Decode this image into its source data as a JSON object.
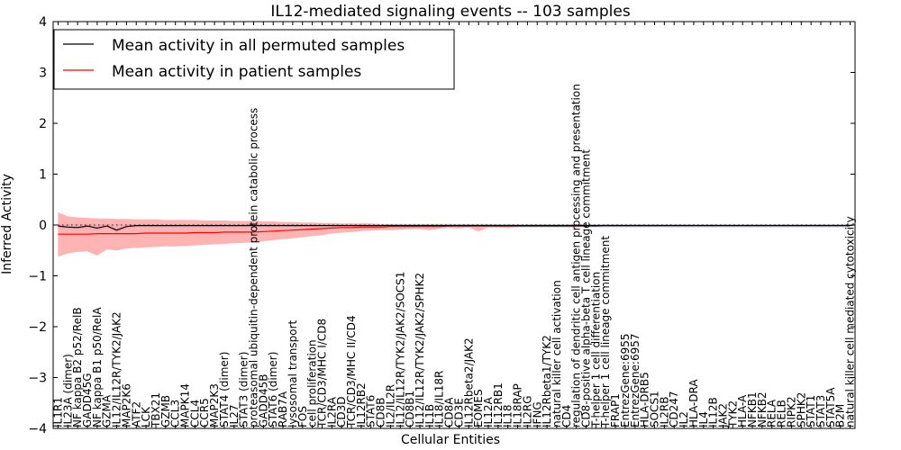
{
  "chart_data": {
    "type": "line",
    "title": "IL12-mediated signaling events -- 103 samples",
    "xlabel": "Cellular Entities",
    "ylabel": "Inferred Activity",
    "ylim": [
      -4,
      4
    ],
    "yticks": [
      -4,
      -3,
      -2,
      -1,
      0,
      1,
      2,
      3,
      4
    ],
    "ytick_labels": [
      "−4",
      "−3",
      "−2",
      "−1",
      "0",
      "1",
      "2",
      "3",
      "4"
    ],
    "grid": false,
    "legend_position": "top-left",
    "categories": [
      "IL1R1",
      "IL23A (dimer)",
      "NF kappa B2 p52/RelB",
      "GADD45G",
      "NF kappa B1 p50/RelA",
      "GZMA",
      "IL12/IL12R/TYK2/JAK2",
      "MAP2K6",
      "ATF2",
      "LCK",
      "TBX21",
      "GZMB",
      "CCL3",
      "MAPK14",
      "CCL4",
      "CCR5",
      "MAP2K3",
      "STAT4 (dimer)",
      "IL27",
      "STAT3 (dimer)",
      "proteasomal ubiquitin-dependent protein catabolic process",
      "GADD45B",
      "STAT6 (dimer)",
      "RAB7A",
      "lysosomal transport",
      "FOS",
      "cell proliferation",
      "TCR/CD3/MHC I/CD8",
      "IL2RA",
      "CD3D",
      "TCR/CD3/MHC II/CD4",
      "IL12RB2",
      "STAT6",
      "CD8B",
      "IL2/IL2R",
      "IL12/IL12R/TYK2/JAK2/SOCS1",
      "CD8B1",
      "IL12/IL12R/TYK2/JAK2/SPHK2",
      "IL1B",
      "IL18/IL18R",
      "CD8A",
      "CD3E",
      "IL12Rbeta2/JAK2",
      "EOMES",
      "IL12A",
      "IL12RB1",
      "IL18",
      "IL18RAP",
      "IL2RG",
      "IFNG",
      "IL12Rbeta1/TYK2",
      "natural killer cell activation",
      "CD4",
      "regulation of dendritic cell antigen processing and presentation",
      "CD8-positive alpha-beta T cell lineage commitment",
      "T-helper 1 cell differentiation",
      "T-helper 1 cell lineage commitment",
      "FRAP1",
      "EntrezGene:6955",
      "EntrezGene:6957",
      "HLA-DRB5",
      "SOCS1",
      "IL2RB",
      "CD247",
      "IL2",
      "HLA-DRA",
      "IL4",
      "IL12B",
      "JAK2",
      "TYK2",
      "HLA-A",
      "NFKB1",
      "NFKB2",
      "RELA",
      "RELB",
      "RIPK2",
      "SPHK2",
      "STAT1",
      "STAT3",
      "STAT5A",
      "B2M",
      "natural killer cell mediated cytotoxicity"
    ],
    "series": [
      {
        "name": "Mean activity in all permuted samples",
        "color": "#000000",
        "values": [
          -0.02,
          -0.04,
          -0.05,
          -0.02,
          -0.06,
          -0.02,
          -0.1,
          -0.03,
          -0.01,
          -0.01,
          -0.01,
          -0.01,
          -0.01,
          -0.01,
          -0.01,
          -0.01,
          -0.01,
          -0.01,
          -0.01,
          -0.01,
          -0.01,
          -0.01,
          -0.01,
          -0.01,
          -0.01,
          -0.01,
          -0.01,
          -0.01,
          -0.01,
          -0.01,
          -0.01,
          -0.01,
          -0.01,
          -0.01,
          -0.01,
          -0.01,
          -0.01,
          -0.01,
          -0.01,
          -0.01,
          -0.01,
          -0.01,
          -0.01,
          -0.01,
          -0.01,
          -0.01,
          -0.01,
          -0.01,
          -0.01,
          -0.01,
          -0.01,
          -0.01,
          -0.01,
          -0.01,
          -0.01,
          -0.01,
          -0.01,
          -0.01,
          -0.01,
          -0.01,
          -0.01,
          -0.01,
          -0.01,
          -0.01,
          -0.01,
          -0.01,
          -0.01,
          -0.01,
          -0.01,
          -0.01,
          -0.01,
          -0.01,
          -0.01,
          -0.01,
          -0.01,
          -0.01,
          -0.01,
          -0.01,
          -0.01,
          -0.01,
          -0.01,
          -0.01
        ]
      },
      {
        "name": "Mean activity in patient samples",
        "color": "#ff0000",
        "values": [
          -0.18,
          -0.18,
          -0.18,
          -0.18,
          -0.17,
          -0.17,
          -0.17,
          -0.17,
          -0.17,
          -0.16,
          -0.16,
          -0.16,
          -0.16,
          -0.16,
          -0.15,
          -0.15,
          -0.15,
          -0.14,
          -0.14,
          -0.14,
          -0.14,
          -0.13,
          -0.12,
          -0.11,
          -0.1,
          -0.09,
          -0.08,
          -0.07,
          -0.06,
          -0.05,
          -0.05,
          -0.04,
          -0.04,
          -0.04,
          -0.03,
          -0.03,
          -0.03,
          -0.03,
          -0.03,
          -0.03,
          -0.02,
          -0.02,
          -0.02,
          -0.02,
          -0.02,
          -0.02,
          -0.02,
          -0.02,
          -0.02,
          -0.02,
          -0.02,
          -0.02,
          -0.02,
          -0.02,
          -0.02,
          -0.02,
          -0.01,
          -0.01,
          -0.01,
          -0.01,
          -0.01,
          -0.01,
          -0.01,
          -0.01,
          -0.01,
          -0.01,
          -0.01,
          -0.01,
          -0.01,
          -0.01,
          -0.01,
          -0.01,
          -0.01,
          -0.01,
          -0.01,
          -0.01,
          -0.01,
          -0.01,
          -0.01,
          -0.01,
          -0.01,
          -0.01
        ]
      }
    ],
    "patient_band": {
      "color": "#ff9999",
      "upper": [
        0.25,
        0.17,
        0.15,
        0.14,
        0.13,
        0.13,
        0.12,
        0.12,
        0.11,
        0.11,
        0.11,
        0.1,
        0.1,
        0.1,
        0.1,
        0.09,
        0.09,
        0.09,
        0.08,
        0.08,
        0.08,
        0.07,
        0.07,
        0.06,
        0.06,
        0.05,
        0.05,
        0.04,
        0.04,
        0.03,
        0.03,
        0.03,
        0.03,
        0.02,
        0.02,
        0.02,
        0.02,
        0.02,
        0.02,
        0.02,
        0.02,
        0.02,
        0.02,
        0.02,
        0.02,
        0.01,
        0.01,
        0.01,
        0.01,
        0.01,
        0.01,
        0.01,
        0.01,
        0.01,
        0.01,
        0.01,
        0.01,
        0.01,
        0.01,
        0.01,
        0.01,
        0.01,
        0.01,
        0.01,
        0.01,
        0.01,
        0.01,
        0.01,
        0.01,
        0.01,
        0.01,
        0.01,
        0.01,
        0.01,
        0.01,
        0.01,
        0.01,
        0.01,
        0.01,
        0.01,
        0.01,
        0.01
      ],
      "lower": [
        -0.62,
        -0.56,
        -0.53,
        -0.52,
        -0.6,
        -0.48,
        -0.5,
        -0.46,
        -0.45,
        -0.44,
        -0.43,
        -0.42,
        -0.42,
        -0.41,
        -0.4,
        -0.39,
        -0.38,
        -0.37,
        -0.36,
        -0.35,
        -0.34,
        -0.32,
        -0.3,
        -0.28,
        -0.26,
        -0.24,
        -0.22,
        -0.2,
        -0.17,
        -0.15,
        -0.14,
        -0.12,
        -0.11,
        -0.1,
        -0.1,
        -0.09,
        -0.08,
        -0.08,
        -0.1,
        -0.07,
        -0.06,
        -0.07,
        -0.05,
        -0.13,
        -0.05,
        -0.05,
        -0.06,
        -0.04,
        -0.04,
        -0.04,
        -0.04,
        -0.04,
        -0.04,
        -0.05,
        -0.03,
        -0.03,
        -0.03,
        -0.03,
        -0.03,
        -0.03,
        -0.03,
        -0.03,
        -0.02,
        -0.02,
        -0.02,
        -0.02,
        -0.02,
        -0.02,
        -0.02,
        -0.02,
        -0.02,
        -0.02,
        -0.02,
        -0.02,
        -0.02,
        -0.02,
        -0.02,
        -0.02,
        -0.02,
        -0.02,
        -0.02,
        -0.02
      ]
    },
    "permuted_band": {
      "color": "#c8cce8",
      "upper": [
        0.02,
        0.02,
        0.02,
        0.02,
        0.02,
        0.02,
        0.02,
        0.02,
        0.02,
        0.02,
        0.02,
        0.02,
        0.02,
        0.02,
        0.02,
        0.02,
        0.02,
        0.02,
        0.02,
        0.02,
        0.02,
        0.02,
        0.02,
        0.02,
        0.02,
        0.02,
        0.02,
        0.02,
        0.02,
        0.02,
        0.02,
        0.02,
        0.02,
        0.02,
        0.02,
        0.02,
        0.02,
        0.02,
        0.02,
        0.02,
        0.02,
        0.02,
        0.02,
        0.02,
        0.02,
        0.02,
        0.02,
        0.02,
        0.02,
        0.02,
        0.02,
        0.02,
        0.02,
        0.02,
        0.02,
        0.02,
        0.02,
        0.02,
        0.02,
        0.02,
        0.02,
        0.02,
        0.02,
        0.02,
        0.02,
        0.02,
        0.02,
        0.02,
        0.02,
        0.02,
        0.02,
        0.02,
        0.02,
        0.02,
        0.02,
        0.02,
        0.02,
        0.02,
        0.02,
        0.02,
        0.02,
        0.02
      ],
      "lower": [
        -0.06,
        -0.08,
        -0.1,
        -0.07,
        -0.12,
        -0.06,
        -0.15,
        -0.07,
        -0.05,
        -0.05,
        -0.05,
        -0.05,
        -0.05,
        -0.05,
        -0.05,
        -0.05,
        -0.05,
        -0.05,
        -0.05,
        -0.05,
        -0.05,
        -0.05,
        -0.05,
        -0.05,
        -0.05,
        -0.05,
        -0.05,
        -0.05,
        -0.05,
        -0.05,
        -0.05,
        -0.05,
        -0.05,
        -0.05,
        -0.05,
        -0.05,
        -0.05,
        -0.05,
        -0.05,
        -0.05,
        -0.05,
        -0.05,
        -0.05,
        -0.05,
        -0.05,
        -0.05,
        -0.05,
        -0.05,
        -0.05,
        -0.05,
        -0.05,
        -0.05,
        -0.05,
        -0.05,
        -0.05,
        -0.05,
        -0.05,
        -0.05,
        -0.05,
        -0.05,
        -0.05,
        -0.05,
        -0.05,
        -0.05,
        -0.05,
        -0.05,
        -0.05,
        -0.05,
        -0.05,
        -0.05,
        -0.05,
        -0.05,
        -0.05,
        -0.05,
        -0.05,
        -0.05,
        -0.05,
        -0.05,
        -0.05,
        -0.05,
        -0.05,
        -0.05
      ]
    }
  }
}
